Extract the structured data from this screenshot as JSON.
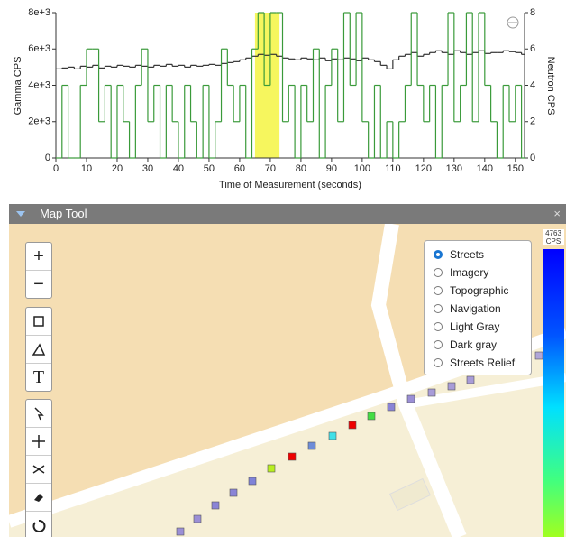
{
  "chart_data": {
    "type": "step",
    "x_label": "Time of Measurement (seconds)",
    "y_label": "Gamma CPS",
    "y2_label": "Neutron CPS",
    "x": [
      0,
      2,
      4,
      6,
      8,
      10,
      12,
      14,
      16,
      18,
      20,
      22,
      24,
      26,
      28,
      30,
      32,
      34,
      36,
      38,
      40,
      42,
      44,
      46,
      48,
      50,
      52,
      54,
      56,
      58,
      60,
      62,
      64,
      66,
      68,
      70,
      72,
      74,
      76,
      78,
      80,
      82,
      84,
      86,
      88,
      90,
      92,
      94,
      96,
      98,
      100,
      102,
      104,
      106,
      108,
      110,
      112,
      114,
      116,
      118,
      120,
      122,
      124,
      126,
      128,
      130,
      132,
      134,
      136,
      138,
      140,
      142,
      144,
      146,
      148,
      150,
      152
    ],
    "series": [
      {
        "name": "Gamma CPS",
        "color": "#333333",
        "values": [
          4900,
          4950,
          5000,
          4900,
          5050,
          5000,
          5100,
          4950,
          5050,
          5000,
          5100,
          5050,
          5000,
          5100,
          5050,
          5000,
          5100,
          5050,
          5150,
          5050,
          5100,
          5000,
          5100,
          5050,
          5100,
          5150,
          5100,
          5200,
          5250,
          5300,
          5400,
          5500,
          5600,
          5700,
          5650,
          5700,
          5600,
          5500,
          5450,
          5400,
          5500,
          5450,
          5400,
          5500,
          5350,
          5450,
          5400,
          5500,
          5450,
          5350,
          5500,
          5400,
          5300,
          5100,
          4900,
          5400,
          5600,
          5700,
          5800,
          5600,
          5700,
          5800,
          5900,
          5800,
          5700,
          5900,
          5800,
          5700,
          5800,
          5900,
          5750,
          5800,
          5800,
          5900,
          5850,
          5800,
          5700
        ]
      },
      {
        "name": "Neutron CPS",
        "color": "#3a9a3a",
        "axis": "y2",
        "values": [
          0,
          4,
          0,
          0,
          4,
          6,
          6,
          2,
          4,
          0,
          4,
          2,
          0,
          4,
          6,
          2,
          4,
          0,
          4,
          2,
          0,
          4,
          2,
          0,
          4,
          0,
          2,
          6,
          4,
          2,
          4,
          0,
          6,
          8,
          4,
          8,
          8,
          2,
          4,
          0,
          4,
          2,
          6,
          0,
          4,
          6,
          2,
          8,
          4,
          8,
          2,
          0,
          4,
          0,
          2,
          0,
          2,
          4,
          8,
          4,
          2,
          4,
          0,
          4,
          8,
          2,
          4,
          8,
          2,
          8,
          4,
          2,
          0,
          4,
          2,
          4,
          0
        ]
      }
    ],
    "highlight": [
      65,
      73
    ],
    "highlight_color": "#f5f542",
    "xlim": [
      0,
      153
    ],
    "xticks": [
      0,
      10,
      20,
      30,
      40,
      50,
      60,
      70,
      80,
      90,
      100,
      110,
      120,
      130,
      140,
      150
    ],
    "ylim": [
      0,
      8000
    ],
    "yticks": [
      0,
      {
        "value": 2000,
        "label": "2e+3"
      },
      {
        "value": 4000,
        "label": "4e+3"
      },
      {
        "value": 6000,
        "label": "6e+3"
      },
      {
        "value": 8000,
        "label": "8e+3"
      }
    ],
    "y2lim": [
      0,
      8
    ],
    "y2ticks": [
      0,
      2,
      4,
      6,
      8
    ]
  },
  "map_tool": {
    "title": "Map Tool",
    "zoom_in": "+",
    "zoom_out": "−",
    "text_tool": "T",
    "layers": [
      "Streets",
      "Imagery",
      "Topographic",
      "Navigation",
      "Light Gray",
      "Dark gray",
      "Streets Relief"
    ],
    "selected": 0,
    "scale_max": 4763,
    "scale_unit": "CPS"
  }
}
